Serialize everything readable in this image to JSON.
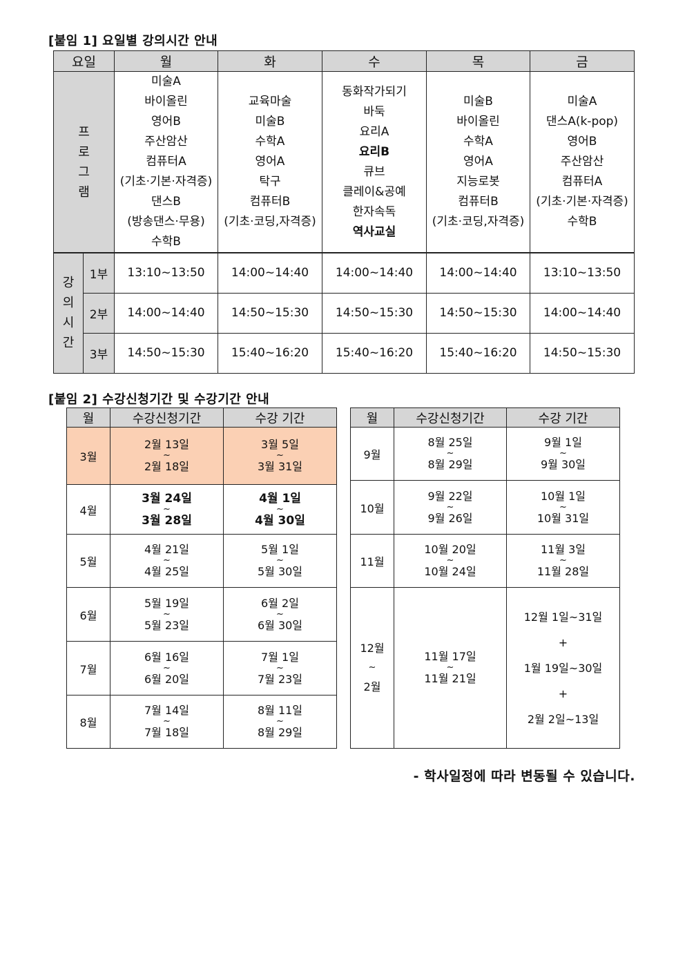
{
  "attach1": {
    "title": "[붙임 1] 요일별 강의시간 안내",
    "header": {
      "day_label": "요일",
      "days": [
        "월",
        "화",
        "수",
        "목",
        "금"
      ]
    },
    "program_label": [
      "프",
      "로",
      "그",
      "램"
    ],
    "programs": [
      [
        "미술A",
        "바이올린",
        "영어B",
        "주산암산",
        "컴퓨터A",
        "(기초·기본·자격증)",
        "댄스B",
        "(방송댄스·무용)",
        "수학B"
      ],
      [
        "교육마술",
        "미술B",
        "수학A",
        "영어A",
        "탁구",
        "컴퓨터B",
        "(기초·코딩,자격증)"
      ],
      [
        "동화작가되기",
        "바둑",
        "요리A",
        "요리B",
        "큐브",
        "클레이&공예",
        "한자속독",
        "역사교실"
      ],
      [
        "미술B",
        "바이올린",
        "수학A",
        "영어A",
        "지능로봇",
        "컴퓨터B",
        "(기초·코딩,자격증)"
      ],
      [
        "미술A",
        "댄스A(k-pop)",
        "영어B",
        "주산암산",
        "컴퓨터A",
        "(기초·기본·자격증)",
        "수학B"
      ]
    ],
    "time_label": [
      "강",
      "의",
      "시",
      "간"
    ],
    "sessions": [
      {
        "part": "1부",
        "times": [
          "13:10~13:50",
          "14:00~14:40",
          "14:00~14:40",
          "14:00~14:40",
          "13:10~13:50"
        ]
      },
      {
        "part": "2부",
        "times": [
          "14:00~14:40",
          "14:50~15:30",
          "14:50~15:30",
          "14:50~15:30",
          "14:00~14:40"
        ]
      },
      {
        "part": "3부",
        "times": [
          "14:50~15:30",
          "15:40~16:20",
          "15:40~16:20",
          "15:40~16:20",
          "14:50~15:30"
        ]
      }
    ]
  },
  "attach2": {
    "title": "[붙임 2] 수강신청기간 및 수강기간 안내",
    "headers": {
      "month": "월",
      "apply": "수강신청기간",
      "course": "수강 기간"
    },
    "left_rows": [
      {
        "month": "3월",
        "apply": [
          "2월 13일",
          "~",
          "2월 18일"
        ],
        "course": [
          "3월 5일",
          "~",
          "3월 31일"
        ],
        "highlight_color": "#fbd0b4"
      },
      {
        "month": "4월",
        "apply": [
          "3월 24일",
          "~",
          "3월 28일"
        ],
        "course": [
          "4월 1일",
          "~",
          "4월 30일"
        ]
      },
      {
        "month": "5월",
        "apply": [
          "4월 21일",
          "~",
          "4월 25일"
        ],
        "course": [
          "5월 1일",
          "~",
          "5월 30일"
        ]
      },
      {
        "month": "6월",
        "apply": [
          "5월 19일",
          "~",
          "5월 23일"
        ],
        "course": [
          "6월 2일",
          "~",
          "6월 30일"
        ]
      },
      {
        "month": "7월",
        "apply": [
          "6월 16일",
          "~",
          "6월 20일"
        ],
        "course": [
          "7월 1일",
          "~",
          "7월 23일"
        ]
      },
      {
        "month": "8월",
        "apply": [
          "7월 14일",
          "~",
          "7월 18일"
        ],
        "course": [
          "8월 11일",
          "~",
          "8월 29일"
        ]
      }
    ],
    "right_rows": [
      {
        "month": "9월",
        "apply": [
          "8월 25일",
          "~",
          "8월 29일"
        ],
        "course": [
          "9월 1일",
          "~",
          "9월 30일"
        ]
      },
      {
        "month": "10월",
        "apply": [
          "9월 22일",
          "~",
          "9월 26일"
        ],
        "course": [
          "10월 1일",
          "~",
          "10월 31일"
        ]
      },
      {
        "month": "11월",
        "apply": [
          "10월 20일",
          "~",
          "10월 24일"
        ],
        "course": [
          "11월 3일",
          "~",
          "11월 28일"
        ]
      }
    ],
    "winter": {
      "month": [
        "12월",
        "~",
        "2월"
      ],
      "apply": [
        "11월 17일",
        "~",
        "11월 21일"
      ],
      "course": [
        "12월 1일~31일",
        "+",
        "1월 19일~30일",
        "+",
        "2월  2일~13일"
      ]
    },
    "note": "- 학사일정에 따라 변동될 수 있습니다."
  },
  "colors": {
    "header_bg": "#d6d6d6",
    "highlight": "#fbd0b4"
  }
}
